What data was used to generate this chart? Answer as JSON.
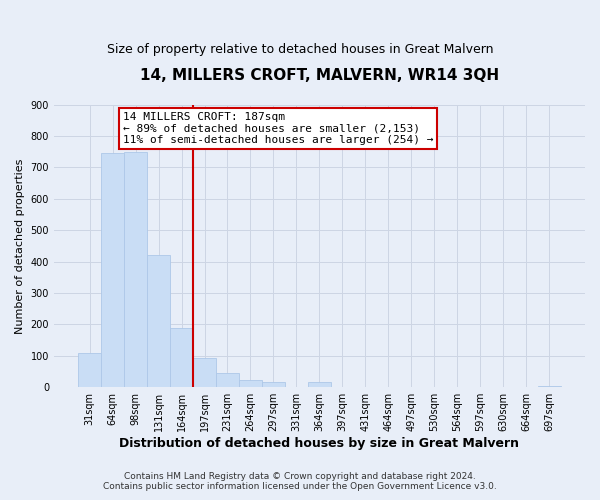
{
  "title": "14, MILLERS CROFT, MALVERN, WR14 3QH",
  "subtitle": "Size of property relative to detached houses in Great Malvern",
  "xlabel": "Distribution of detached houses by size in Great Malvern",
  "ylabel": "Number of detached properties",
  "bin_labels": [
    "31sqm",
    "64sqm",
    "98sqm",
    "131sqm",
    "164sqm",
    "197sqm",
    "231sqm",
    "264sqm",
    "297sqm",
    "331sqm",
    "364sqm",
    "397sqm",
    "431sqm",
    "464sqm",
    "497sqm",
    "530sqm",
    "564sqm",
    "597sqm",
    "630sqm",
    "664sqm",
    "697sqm"
  ],
  "bar_values": [
    110,
    745,
    750,
    420,
    190,
    93,
    45,
    22,
    18,
    0,
    17,
    0,
    0,
    0,
    0,
    0,
    0,
    0,
    0,
    0,
    5
  ],
  "bar_color": "#c9ddf5",
  "bar_edge_color": "#aec8e8",
  "vline_color": "#cc0000",
  "annotation_box_text": "14 MILLERS CROFT: 187sqm\n← 89% of detached houses are smaller (2,153)\n11% of semi-detached houses are larger (254) →",
  "annotation_box_color": "#cc0000",
  "ylim": [
    0,
    900
  ],
  "yticks": [
    0,
    100,
    200,
    300,
    400,
    500,
    600,
    700,
    800,
    900
  ],
  "grid_color": "#cdd5e4",
  "bg_color": "#e8eef8",
  "footer_line1": "Contains HM Land Registry data © Crown copyright and database right 2024.",
  "footer_line2": "Contains public sector information licensed under the Open Government Licence v3.0.",
  "title_fontsize": 11,
  "subtitle_fontsize": 9,
  "xlabel_fontsize": 9,
  "ylabel_fontsize": 8,
  "tick_fontsize": 7,
  "annotation_fontsize": 8,
  "footer_fontsize": 6.5
}
